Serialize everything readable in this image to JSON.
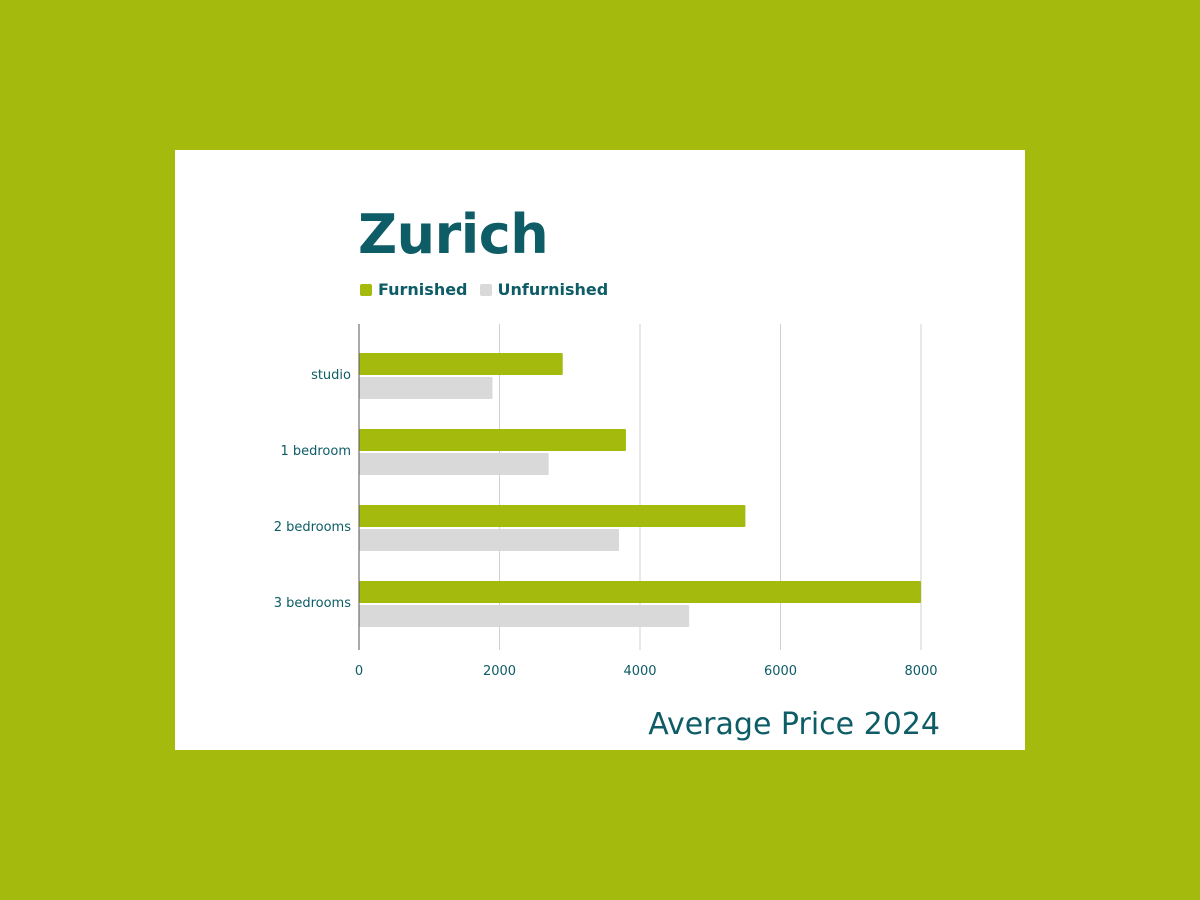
{
  "chart_data": {
    "type": "bar",
    "orientation": "horizontal",
    "title": "Zurich",
    "subtitle": "Average Price 2024",
    "categories": [
      "studio",
      "1 bedroom",
      "2 bedrooms",
      "3 bedrooms"
    ],
    "series": [
      {
        "name": "Furnished",
        "color": "#a4bb0e",
        "values": [
          2900,
          3800,
          5500,
          8000
        ]
      },
      {
        "name": "Unfurnished",
        "color": "#d9d9d9",
        "values": [
          1900,
          2700,
          3700,
          4700
        ]
      }
    ],
    "xticks": [
      0,
      2000,
      4000,
      6000,
      8000
    ],
    "xlim": [
      0,
      8000
    ],
    "grid": true,
    "legend": "top-left"
  },
  "colors": {
    "background": "#a4bb0e",
    "card": "#ffffff",
    "text": "#0d5c66",
    "grid": "#d0d0d0"
  }
}
